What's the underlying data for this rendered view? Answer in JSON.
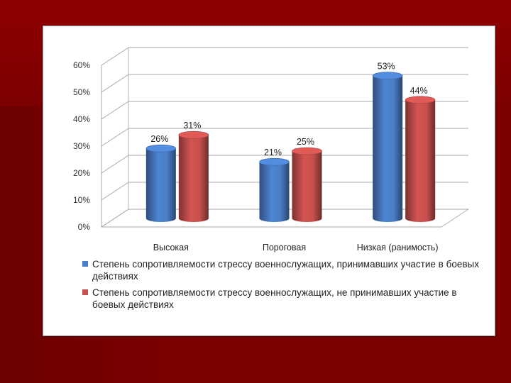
{
  "chart_data": {
    "type": "bar",
    "title": "",
    "xlabel": "",
    "ylabel": "",
    "categories": [
      "Высокая",
      "Пороговая",
      "Низкая (ранимость)"
    ],
    "ylim": [
      0,
      60
    ],
    "yticks": [
      "0%",
      "10%",
      "20%",
      "30%",
      "40%",
      "50%",
      "60%"
    ],
    "series": [
      {
        "name": "Степень сопротивляемости стрессу военнослужащих, принимавших участие в боевых действиях",
        "values": [
          26,
          21,
          53
        ],
        "labels": [
          "26%",
          "21%",
          "53%"
        ],
        "color": "#4a7ec8"
      },
      {
        "name": "Степень сопротивляемости стрессу военнослужащих, не принимавших участие в боевых действиях",
        "values": [
          31,
          25,
          44
        ],
        "labels": [
          "31%",
          "25%",
          "44%"
        ],
        "color": "#c9504e"
      }
    ],
    "legend_position": "bottom",
    "grid": true,
    "style": "3d-cylinder"
  }
}
